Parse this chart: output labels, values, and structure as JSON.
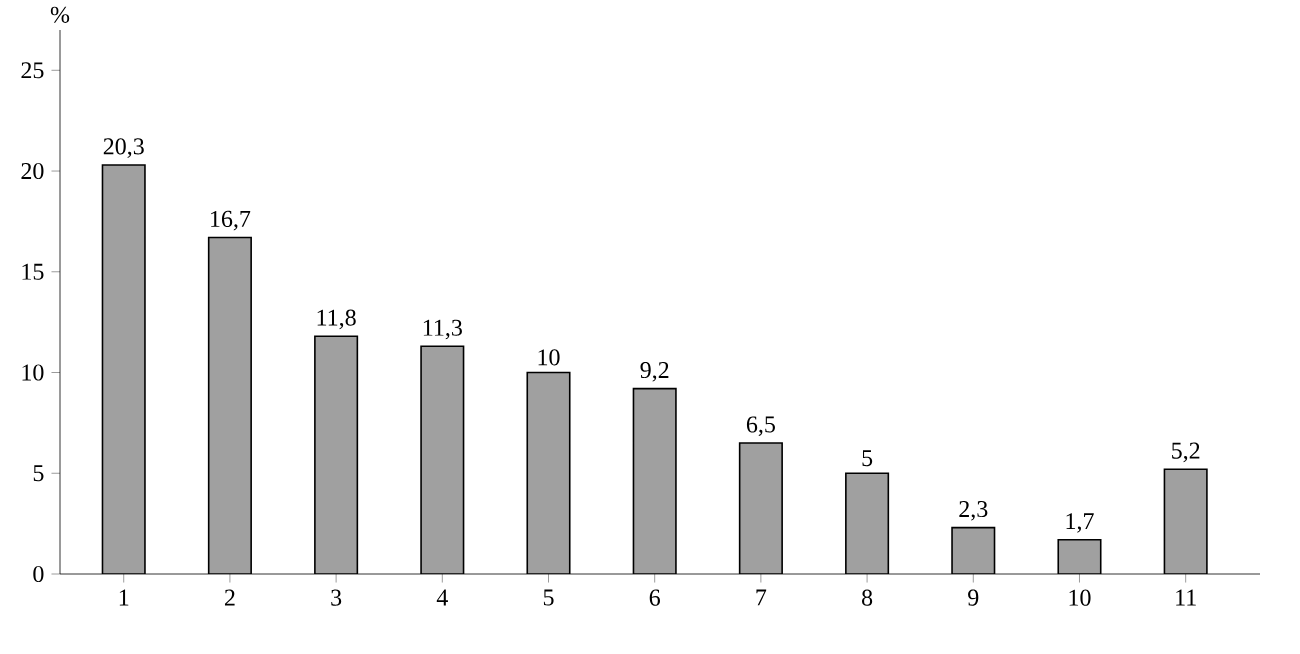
{
  "chart_data": {
    "type": "bar",
    "ylabel": "%",
    "categories": [
      "1",
      "2",
      "3",
      "4",
      "5",
      "6",
      "7",
      "8",
      "9",
      "10",
      "11"
    ],
    "values": [
      20.3,
      16.7,
      11.8,
      11.3,
      10,
      9.2,
      6.5,
      5,
      2.3,
      1.7,
      5.2
    ],
    "value_labels": [
      "20,3",
      "16,7",
      "11,8",
      "11,3",
      "10",
      "9,2",
      "6,5",
      "5",
      "2,3",
      "1,7",
      "5,2"
    ],
    "color": "#a0a0a0",
    "ylim": [
      0,
      27
    ],
    "yticks": [
      0,
      5,
      10,
      15,
      20,
      25
    ],
    "grid": false
  }
}
